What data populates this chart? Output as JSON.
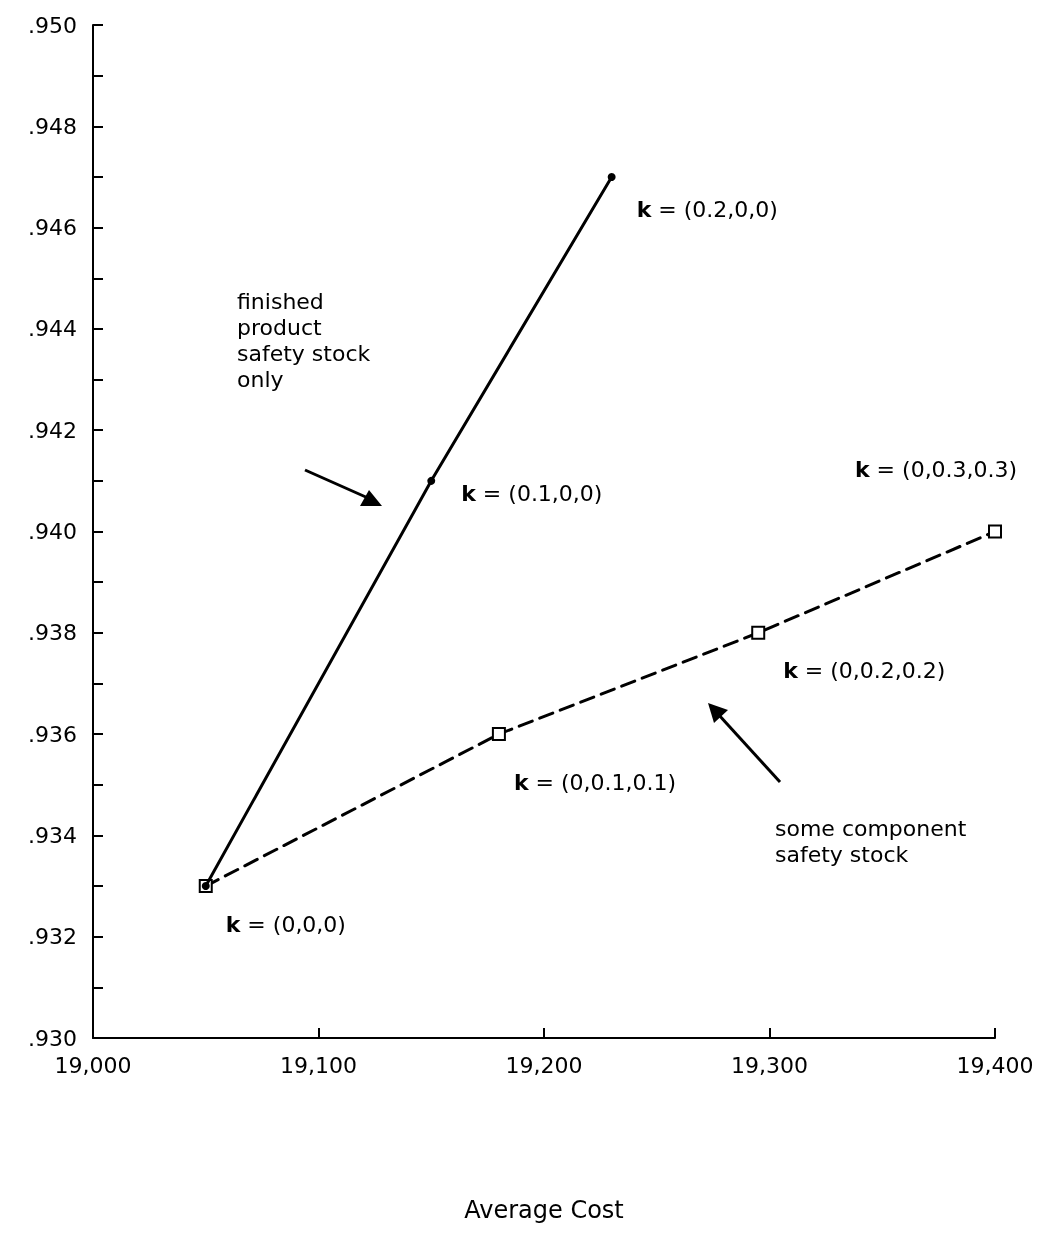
{
  "chart_data": {
    "type": "line",
    "xlabel": "Average Cost",
    "series": [
      {
        "x": [
          19050,
          19150,
          19230
        ],
        "values": [
          0.933,
          0.941,
          0.947
        ],
        "color": "#000000",
        "marker": "circle",
        "line_style": "solid"
      },
      {
        "x": [
          19050,
          19180,
          19295,
          19400
        ],
        "values": [
          0.933,
          0.936,
          0.938,
          0.94
        ],
        "color": "#000000",
        "marker": "square",
        "line_style": "dashed"
      }
    ],
    "xlim": [
      19000,
      19400
    ],
    "xticks": [
      {
        "value": 19000,
        "label": "19,000"
      },
      {
        "value": 19100,
        "label": "19,100"
      },
      {
        "value": 19200,
        "label": "19,200"
      },
      {
        "value": 19300,
        "label": "19,300"
      },
      {
        "value": 19400,
        "label": "19,400"
      }
    ],
    "ylim": [
      0.93,
      0.95
    ],
    "yticks": [
      {
        "value": 0.93,
        "label": ".930"
      },
      {
        "value": 0.931,
        "label": null
      },
      {
        "value": 0.932,
        "label": ".932"
      },
      {
        "value": 0.933,
        "label": null
      },
      {
        "value": 0.934,
        "label": ".934"
      },
      {
        "value": 0.935,
        "label": null
      },
      {
        "value": 0.936,
        "label": ".936"
      },
      {
        "value": 0.937,
        "label": null
      },
      {
        "value": 0.938,
        "label": ".938"
      },
      {
        "value": 0.939,
        "label": null
      },
      {
        "value": 0.94,
        "label": ".940"
      },
      {
        "value": 0.941,
        "label": null
      },
      {
        "value": 0.942,
        "label": ".942"
      },
      {
        "value": 0.943,
        "label": null
      },
      {
        "value": 0.944,
        "label": ".944"
      },
      {
        "value": 0.945,
        "label": null
      },
      {
        "value": 0.946,
        "label": ".946"
      },
      {
        "value": 0.947,
        "label": null
      },
      {
        "value": 0.948,
        "label": ".948"
      },
      {
        "value": 0.949,
        "label": null
      },
      {
        "value": 0.95,
        "label": ".950"
      }
    ],
    "annotations": [
      {
        "text": "k = (0,0,0)",
        "x": 19050,
        "y": 0.933
      },
      {
        "text": "k = (0.1,0,0)",
        "x": 19150,
        "y": 0.941
      },
      {
        "text": "k = (0.2,0,0)",
        "x": 19230,
        "y": 0.947
      },
      {
        "text": "k = (0,0.1,0.1)",
        "x": 19180,
        "y": 0.936
      },
      {
        "text": "k = (0,0.2,0.2)",
        "x": 19295,
        "y": 0.938
      },
      {
        "text": "k = (0,0.3,0.3)",
        "x": 19400,
        "y": 0.94
      },
      "finished\nproduct\nsafety stock\nonly",
      "some component\nsafety stock"
    ],
    "grid": false
  }
}
